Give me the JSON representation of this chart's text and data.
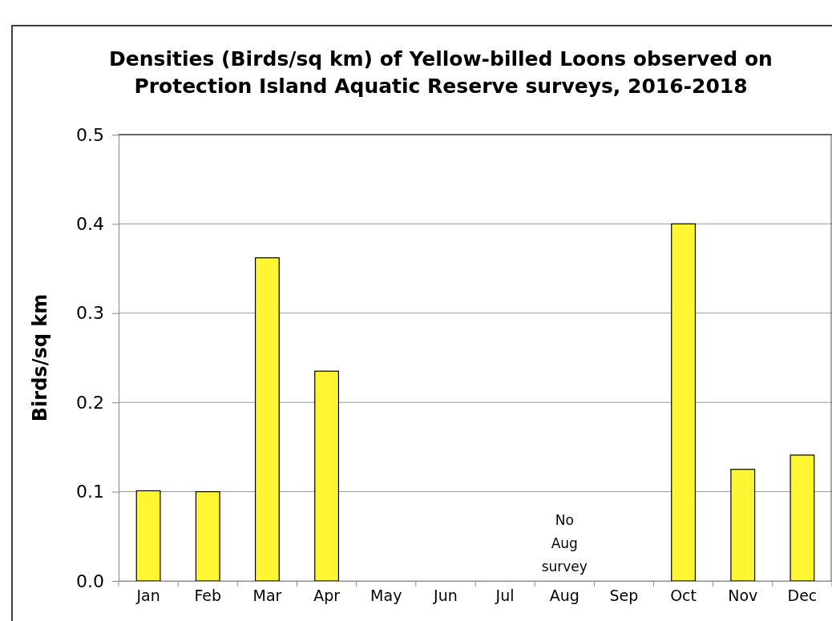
{
  "chart_data": {
    "type": "bar",
    "title": "Densities (Birds/sq km) of Yellow-billed Loons observed on Protection Island Aquatic Reserve surveys, 2016-2018",
    "ylabel": "Birds/sq km",
    "categories": [
      "Jan",
      "Feb",
      "Mar",
      "Apr",
      "May",
      "Jun",
      "Jul",
      "Aug",
      "Sep",
      "Oct",
      "Nov",
      "Dec"
    ],
    "values": [
      0.101,
      0.1,
      0.362,
      0.235,
      0,
      0,
      0,
      null,
      0,
      0.4,
      0.125,
      0.141
    ],
    "color": "#fff533",
    "ylim": [
      0,
      0.5
    ],
    "yticks": [
      {
        "value": 0,
        "label": "0.0"
      },
      {
        "value": 0.1,
        "label": "0.1"
      },
      {
        "value": 0.2,
        "label": "0.2"
      },
      {
        "value": 0.3,
        "label": "0.3"
      },
      {
        "value": 0.4,
        "label": "0.4"
      },
      {
        "value": 0.5,
        "label": "0.5"
      }
    ],
    "grid": "y",
    "annotations": [
      "No Aug survey"
    ]
  }
}
